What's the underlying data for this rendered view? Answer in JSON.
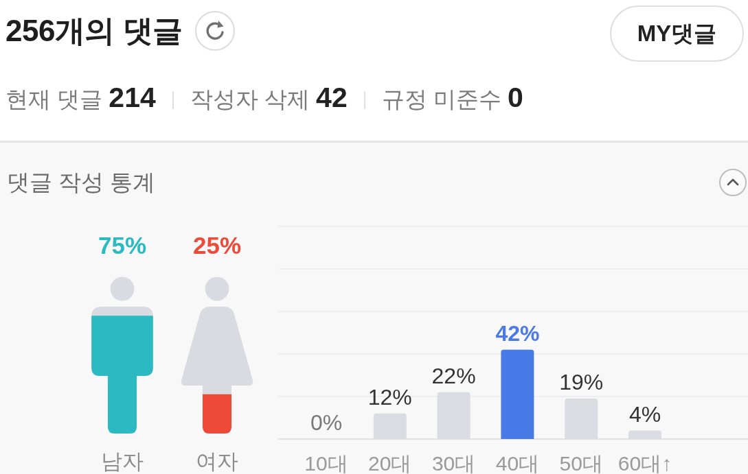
{
  "chart_data": [
    {
      "type": "other",
      "title": "256개의 댓글",
      "annotations": [
        "MY댓글",
        "현재 댓글 214",
        "작성자 삭제 42",
        "규정 미준수 0"
      ]
    },
    {
      "type": "bar",
      "title": "댓글 작성 통계",
      "categories": [
        "남자",
        "여자"
      ],
      "values": [
        75,
        25
      ],
      "value_labels": [
        "75%",
        "25%"
      ],
      "colors": [
        "#2bb9c2",
        "#ee4a3a"
      ],
      "tick_labels": "x"
    },
    {
      "type": "bar",
      "categories": [
        "10대",
        "20대",
        "30대",
        "40대",
        "50대",
        "60대↑"
      ],
      "values": [
        0,
        12,
        22,
        42,
        19,
        4
      ],
      "value_labels": [
        "0%",
        "12%",
        "22%",
        "42%",
        "19%",
        "4%"
      ],
      "colors": [
        "#d9dde2",
        "#d9dde2",
        "#d9dde2",
        "#4a79e8",
        "#d9dde2",
        "#d9dde2"
      ],
      "ylim": [
        0,
        100
      ],
      "yticks": [
        {
          "value": 0,
          "label": null
        },
        {
          "value": 20,
          "label": null
        },
        {
          "value": 40,
          "label": null
        },
        {
          "value": 60,
          "label": null
        },
        {
          "value": 80,
          "label": null
        },
        {
          "value": 100,
          "label": null
        }
      ],
      "grid": "y",
      "tick_labels": "x"
    }
  ]
}
